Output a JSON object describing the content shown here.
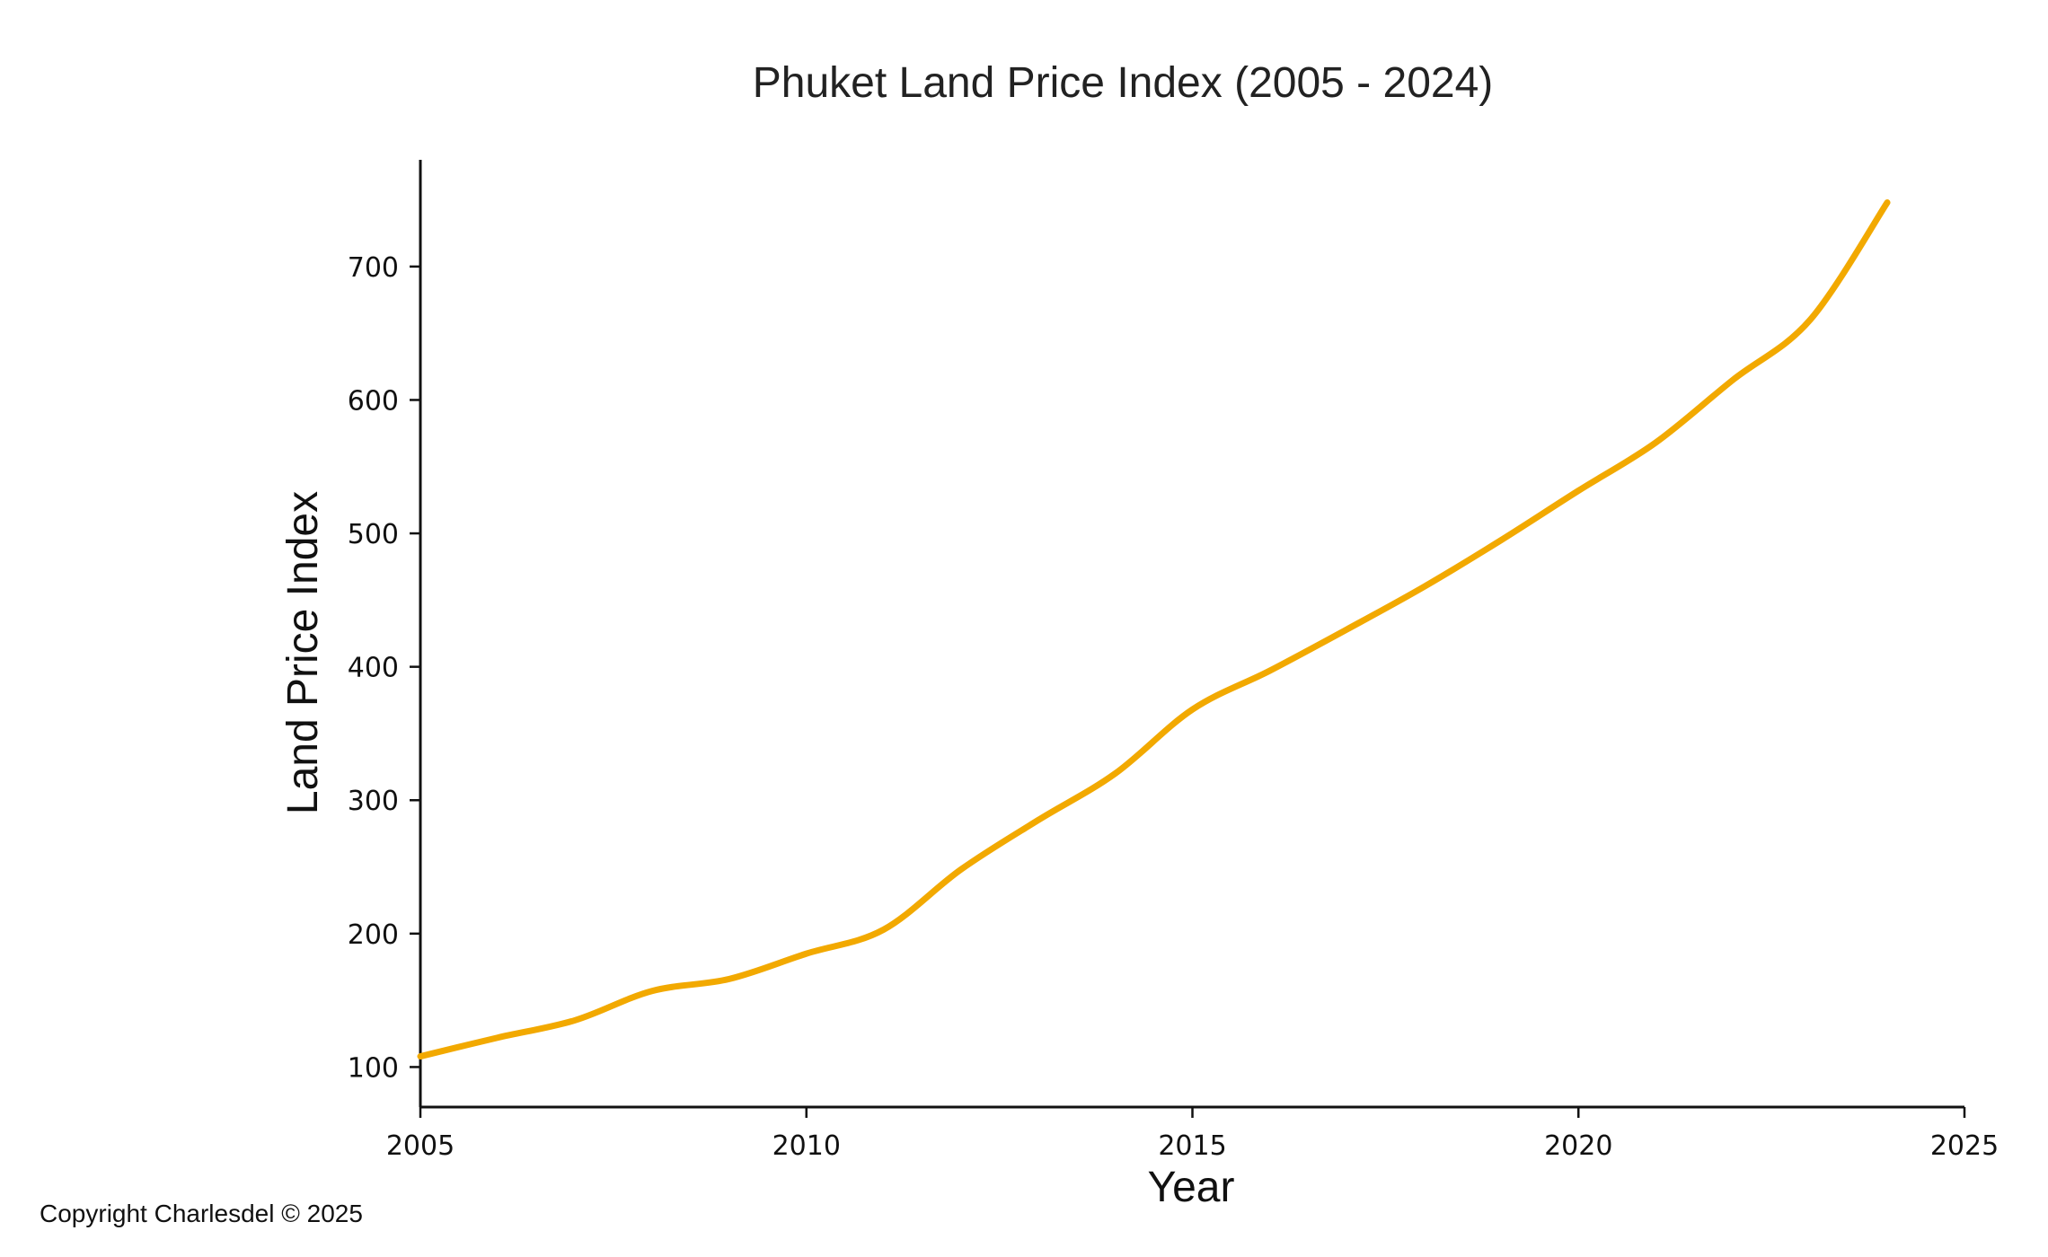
{
  "chart_data": {
    "type": "line",
    "title": "Phuket Land Price Index  (2005 - 2024)",
    "xlabel": "Year",
    "ylabel": "Land Price Index",
    "xlim": [
      2005,
      2025
    ],
    "ylim": [
      70,
      780
    ],
    "x_ticks": [
      2005,
      2010,
      2015,
      2020,
      2025
    ],
    "y_ticks": [
      100,
      200,
      300,
      400,
      500,
      600,
      700
    ],
    "grid": false,
    "legend": "none",
    "series": [
      {
        "color": "#F2A900",
        "x": [
          2005,
          2006,
          2007,
          2008,
          2009,
          2010,
          2011,
          2012,
          2013,
          2014,
          2015,
          2016,
          2017,
          2018,
          2019,
          2020,
          2021,
          2022,
          2023,
          2024
        ],
        "y": [
          108,
          122,
          135,
          157,
          166,
          185,
          203,
          248,
          285,
          320,
          368,
          397,
          428,
          460,
          495,
          532,
          568,
          615,
          660,
          748
        ]
      }
    ]
  },
  "footer": {
    "copyright": "Copyright Charlesdel © 2025"
  }
}
